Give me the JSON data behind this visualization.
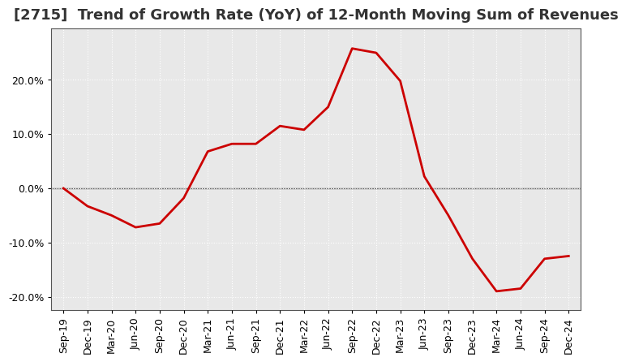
{
  "title": "[2715]  Trend of Growth Rate (YoY) of 12-Month Moving Sum of Revenues",
  "line_color": "#cc0000",
  "line_width": 2.0,
  "background_color": "#ffffff",
  "plot_bg_color": "#e8e8e8",
  "grid_color": "#ffffff",
  "zero_line_color": "#666666",
  "ylim": [
    -0.225,
    0.295
  ],
  "yticks": [
    -0.2,
    -0.1,
    0.0,
    0.1,
    0.2
  ],
  "x_labels": [
    "Sep-19",
    "Dec-19",
    "Mar-20",
    "Jun-20",
    "Sep-20",
    "Dec-20",
    "Mar-21",
    "Jun-21",
    "Sep-21",
    "Dec-21",
    "Mar-22",
    "Jun-22",
    "Sep-22",
    "Dec-22",
    "Mar-23",
    "Jun-23",
    "Sep-23",
    "Dec-23",
    "Mar-24",
    "Jun-24",
    "Sep-24",
    "Dec-24"
  ],
  "data": {
    "Sep-19": 0.0,
    "Dec-19": -0.033,
    "Mar-20": -0.05,
    "Jun-20": -0.072,
    "Sep-20": -0.065,
    "Dec-20": -0.018,
    "Mar-21": 0.068,
    "Jun-21": 0.082,
    "Sep-21": 0.082,
    "Dec-21": 0.115,
    "Mar-22": 0.108,
    "Jun-22": 0.15,
    "Sep-22": 0.258,
    "Dec-22": 0.25,
    "Mar-23": 0.198,
    "Jun-23": 0.022,
    "Sep-23": -0.05,
    "Dec-23": -0.13,
    "Mar-24": -0.19,
    "Jun-24": -0.185,
    "Sep-24": -0.13,
    "Dec-24": -0.125
  },
  "title_fontsize": 13,
  "tick_fontsize": 9
}
